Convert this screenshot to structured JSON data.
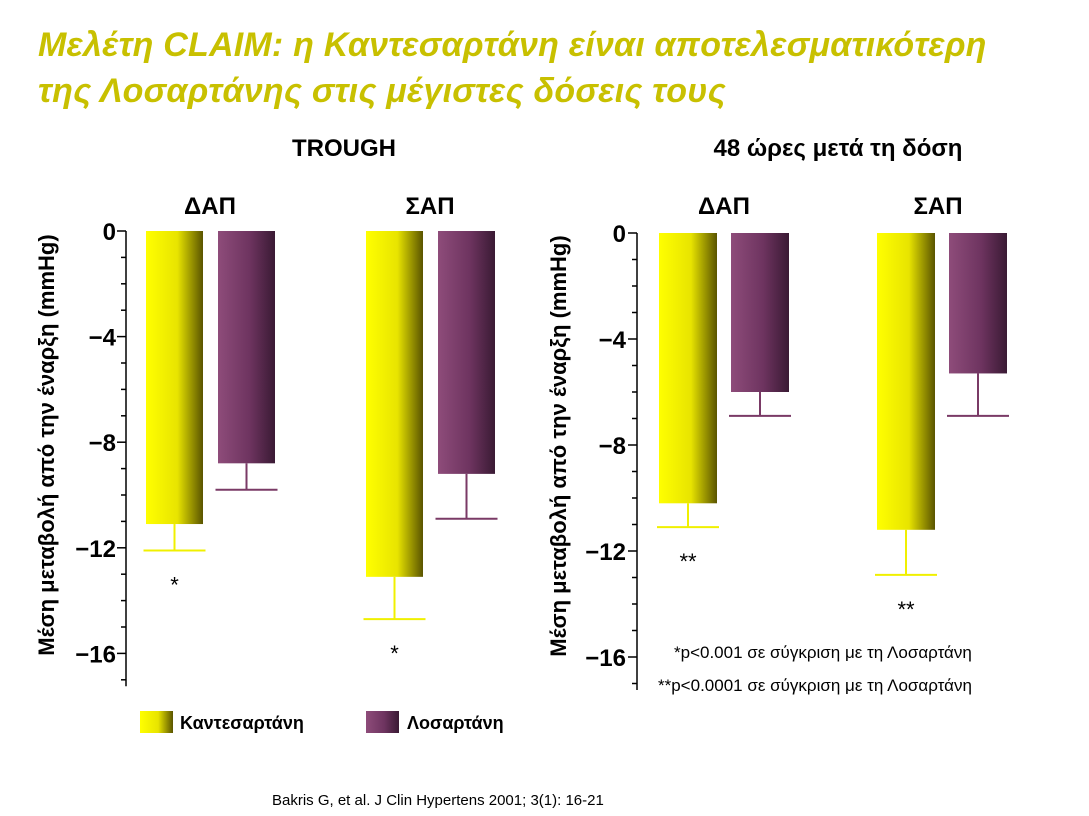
{
  "title": {
    "line1": "Μελέτη CLAIM: η Καντεσαρτάνη είναι αποτελεσματικότερη",
    "line2": "της Λοσαρτάνης στις μέγιστες δόσεις τους",
    "color": "#c8c000"
  },
  "citation": "Bakris G, et al. J Clin Hypertens 2001; 3(1): 16-21",
  "footnotes": [
    "*p<0.001 σε σύγκριση με τη Λοσαρτάνη",
    "**p<0.0001 σε σύγκριση με τη Λοσαρτάνη"
  ],
  "chart_data": [
    {
      "type": "bar",
      "title": "TROUGH",
      "ylabel": "Μέση μεταβολή από την έναρξη (mmHg)",
      "ylim": [
        -18,
        0
      ],
      "yticks": [
        0,
        -4,
        -8,
        -12,
        -16
      ],
      "ytick_labels": [
        "0",
        "−4",
        "−8",
        "−12",
        "−16"
      ],
      "categories": [
        "ΔΑΠ",
        "ΣΑΠ"
      ],
      "series": [
        {
          "name": "Καντεσαρτάνη",
          "values": [
            -11.1,
            -13.1
          ],
          "error_low": [
            -12.1,
            -14.7
          ],
          "color": "#f0f000"
        },
        {
          "name": "Λοσαρτάνη",
          "values": [
            -8.8,
            -9.2
          ],
          "error_low": [
            -9.8,
            -10.9
          ],
          "color": "#7a3a66"
        }
      ],
      "annotations": [
        {
          "category": "ΔΑΠ",
          "text": "*"
        },
        {
          "category": "ΣΑΠ",
          "text": "*"
        }
      ]
    },
    {
      "type": "bar",
      "title": "48 ώρες μετά τη δόση",
      "ylabel": "Μέση μεταβολή από την έναρξη (mmHg)",
      "ylim": [
        -18,
        0
      ],
      "yticks": [
        0,
        -4,
        -8,
        -12,
        -16
      ],
      "ytick_labels": [
        "0",
        "−4",
        "−8",
        "−12",
        "−16"
      ],
      "categories": [
        "ΔΑΠ",
        "ΣΑΠ"
      ],
      "series": [
        {
          "name": "Καντεσαρτάνη",
          "values": [
            -10.2,
            -11.2
          ],
          "error_low": [
            -11.1,
            -12.9
          ],
          "color": "#f0f000"
        },
        {
          "name": "Λοσαρτάνη",
          "values": [
            -6.0,
            -5.3
          ],
          "error_low": [
            -6.9,
            -6.9
          ],
          "color": "#7a3a66"
        }
      ],
      "annotations": [
        {
          "category": "ΔΑΠ",
          "text": "**"
        },
        {
          "category": "ΣΑΠ",
          "text": "**"
        }
      ]
    }
  ],
  "legend": [
    {
      "label": "Καντεσαρτάνη",
      "color": "#f0f000"
    },
    {
      "label": "Λοσαρτάνη",
      "color": "#7a3a66"
    }
  ]
}
